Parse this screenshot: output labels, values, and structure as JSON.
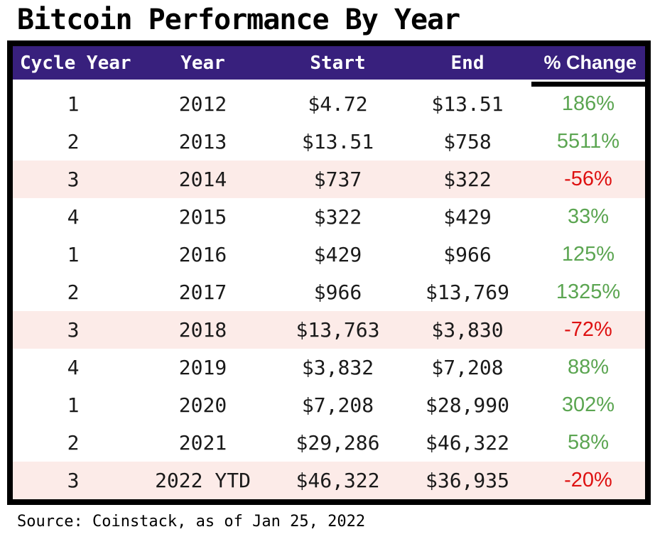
{
  "title": "Bitcoin Performance By Year",
  "source": "Source: Coinstack, as of Jan 25, 2022",
  "colors": {
    "header_bg": "#38207d",
    "header_text": "#ffffff",
    "positive_text": "#5ba551",
    "negative_text": "#de1111",
    "highlight_row_bg": "#fcebe8",
    "border": "#000000"
  },
  "table": {
    "headers": [
      "Cycle Year",
      "Year",
      "Start",
      "End",
      "% Change"
    ],
    "rows": [
      {
        "cycle": "1",
        "year": "2012",
        "start": "$4.72",
        "end": "$13.51",
        "change": "186%",
        "direction": "positive",
        "highlighted": false
      },
      {
        "cycle": "2",
        "year": "2013",
        "start": "$13.51",
        "end": "$758",
        "change": "5511%",
        "direction": "positive",
        "highlighted": false
      },
      {
        "cycle": "3",
        "year": "2014",
        "start": "$737",
        "end": "$322",
        "change": "-56%",
        "direction": "negative",
        "highlighted": true
      },
      {
        "cycle": "4",
        "year": "2015",
        "start": "$322",
        "end": "$429",
        "change": "33%",
        "direction": "positive",
        "highlighted": false
      },
      {
        "cycle": "1",
        "year": "2016",
        "start": "$429",
        "end": "$966",
        "change": "125%",
        "direction": "positive",
        "highlighted": false
      },
      {
        "cycle": "2",
        "year": "2017",
        "start": "$966",
        "end": "$13,769",
        "change": "1325%",
        "direction": "positive",
        "highlighted": false
      },
      {
        "cycle": "3",
        "year": "2018",
        "start": "$13,763",
        "end": "$3,830",
        "change": "-72%",
        "direction": "negative",
        "highlighted": true
      },
      {
        "cycle": "4",
        "year": "2019",
        "start": "$3,832",
        "end": "$7,208",
        "change": "88%",
        "direction": "positive",
        "highlighted": false
      },
      {
        "cycle": "1",
        "year": "2020",
        "start": "$7,208",
        "end": "$28,990",
        "change": "302%",
        "direction": "positive",
        "highlighted": false
      },
      {
        "cycle": "2",
        "year": "2021",
        "start": "$29,286",
        "end": "$46,322",
        "change": "58%",
        "direction": "positive",
        "highlighted": false
      },
      {
        "cycle": "3",
        "year": "2022 YTD",
        "start": "$46,322",
        "end": "$36,935",
        "change": "-20%",
        "direction": "negative",
        "highlighted": true
      }
    ]
  },
  "chart_data": {
    "type": "table",
    "title": "Bitcoin Performance By Year",
    "columns": [
      "Cycle Year",
      "Year",
      "Start",
      "End",
      "% Change"
    ],
    "rows": [
      [
        "1",
        "2012",
        "$4.72",
        "$13.51",
        "186%"
      ],
      [
        "2",
        "2013",
        "$13.51",
        "$758",
        "5511%"
      ],
      [
        "3",
        "2014",
        "$737",
        "$322",
        "-56%"
      ],
      [
        "4",
        "2015",
        "$322",
        "$429",
        "33%"
      ],
      [
        "1",
        "2016",
        "$429",
        "$966",
        "125%"
      ],
      [
        "2",
        "2017",
        "$966",
        "$13,769",
        "1325%"
      ],
      [
        "3",
        "2018",
        "$13,763",
        "$3,830",
        "-72%"
      ],
      [
        "4",
        "2019",
        "$3,832",
        "$7,208",
        "88%"
      ],
      [
        "1",
        "2020",
        "$7,208",
        "$28,990",
        "302%"
      ],
      [
        "2",
        "2021",
        "$29,286",
        "$46,322",
        "58%"
      ],
      [
        "3",
        "2022 YTD",
        "$46,322",
        "$36,935",
        "-20%"
      ]
    ],
    "notes": "Rows with negative % change are highlighted pink; negative values red, positive values green.",
    "source": "Source: Coinstack, as of Jan 25, 2022"
  }
}
